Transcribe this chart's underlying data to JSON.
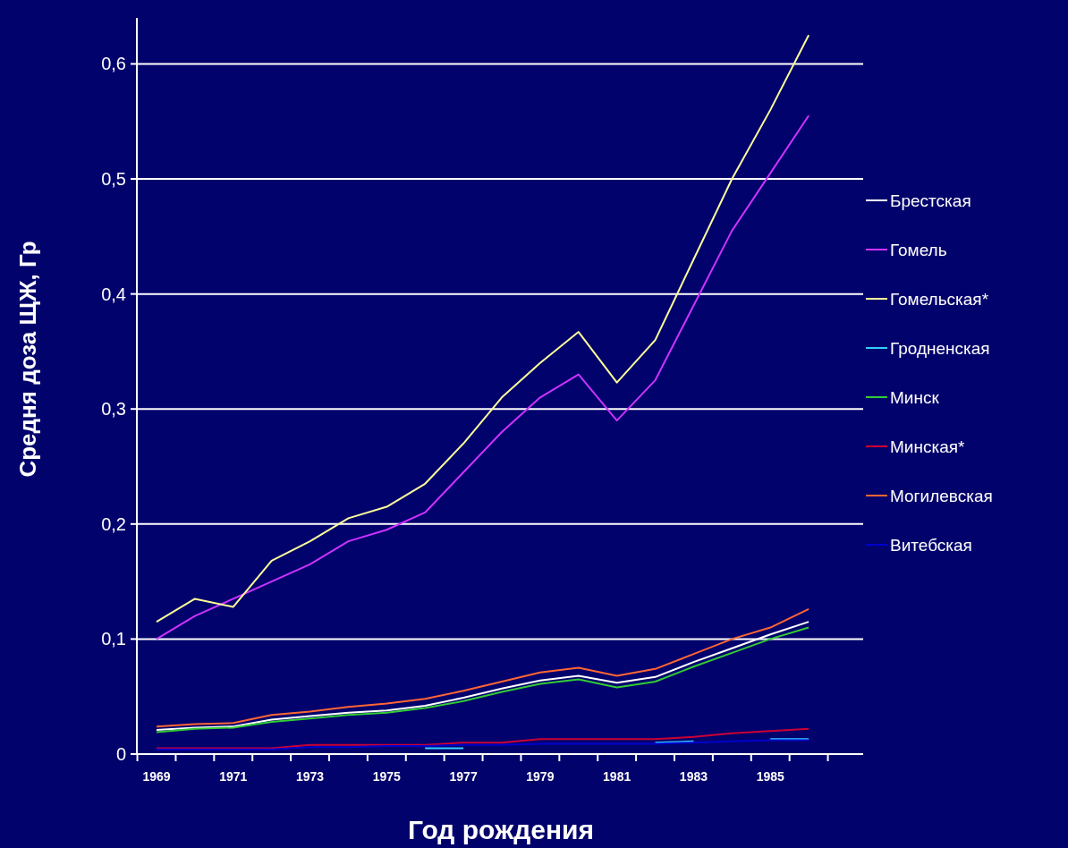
{
  "chart_data": {
    "type": "line",
    "xlabel": "Год рождения",
    "ylabel": "Средня доза ЩЖ, Гр",
    "categories": [
      "1969",
      null,
      "1971",
      null,
      "1973",
      null,
      "1975",
      null,
      "1977",
      null,
      "1979",
      null,
      "1981",
      null,
      "1983",
      null,
      "1985",
      null
    ],
    "ylim": [
      0,
      0.64
    ],
    "yticks": [
      {
        "value": 0,
        "label": "0"
      },
      {
        "value": 0.1,
        "label": "0,1"
      },
      {
        "value": 0.2,
        "label": "0,2"
      },
      {
        "value": 0.3,
        "label": "0,3"
      },
      {
        "value": 0.4,
        "label": "0,4"
      },
      {
        "value": 0.5,
        "label": "0,5"
      },
      {
        "value": 0.6,
        "label": "0,6"
      }
    ],
    "grid": "y",
    "legend": "right",
    "marker": "none",
    "line_style": "solid",
    "series": [
      {
        "name": "Брестская",
        "color": "#ffffff",
        "values": [
          0.021,
          0.023,
          0.024,
          0.03,
          0.033,
          0.036,
          0.038,
          0.042,
          0.049,
          0.057,
          0.064,
          0.068,
          0.062,
          0.067,
          0.08,
          0.092,
          0.104,
          0.115
        ]
      },
      {
        "name": "Гомель",
        "color": "#cc33ff",
        "values": [
          0.1,
          0.12,
          0.135,
          0.15,
          0.165,
          0.185,
          0.195,
          0.21,
          0.245,
          0.28,
          0.31,
          0.33,
          0.29,
          0.325,
          0.39,
          0.455,
          0.505,
          0.555
        ]
      },
      {
        "name": "Гомельская*",
        "color": "#ffff99",
        "values": [
          0.115,
          0.135,
          0.128,
          0.168,
          0.185,
          0.205,
          0.215,
          0.235,
          0.27,
          0.31,
          0.34,
          0.367,
          0.323,
          0.36,
          0.43,
          0.5,
          0.56,
          0.625
        ]
      },
      {
        "name": "Гродненская",
        "color": "#33ccff",
        "values": [
          null,
          null,
          null,
          null,
          null,
          null,
          null,
          0.005,
          0.005,
          null,
          null,
          null,
          null,
          0.01,
          0.011,
          null,
          0.013,
          0.013
        ]
      },
      {
        "name": "Минск",
        "color": "#33cc33",
        "values": [
          0.019,
          0.022,
          0.023,
          0.028,
          0.031,
          0.034,
          0.036,
          0.04,
          0.046,
          0.054,
          0.061,
          0.065,
          0.058,
          0.063,
          0.076,
          0.088,
          0.1,
          0.11
        ]
      },
      {
        "name": "Минская*",
        "color": "#cc0033",
        "values": [
          0.005,
          0.005,
          0.005,
          0.005,
          0.008,
          0.008,
          0.008,
          0.008,
          0.01,
          0.01,
          0.013,
          0.013,
          0.013,
          0.013,
          0.015,
          0.018,
          0.02,
          0.022
        ]
      },
      {
        "name": "Могилевская",
        "color": "#ff6633",
        "values": [
          0.024,
          0.026,
          0.027,
          0.034,
          0.037,
          0.041,
          0.044,
          0.048,
          0.055,
          0.063,
          0.071,
          0.075,
          0.068,
          0.074,
          0.087,
          0.1,
          0.11,
          0.126
        ]
      },
      {
        "name": "Витебская",
        "color": "#0000cc",
        "values": [
          0.004,
          0.004,
          0.004,
          0.004,
          0.006,
          0.006,
          0.007,
          0.007,
          0.008,
          0.008,
          0.009,
          0.009,
          0.009,
          0.009,
          0.01,
          0.011,
          0.012,
          0.012
        ]
      }
    ]
  }
}
